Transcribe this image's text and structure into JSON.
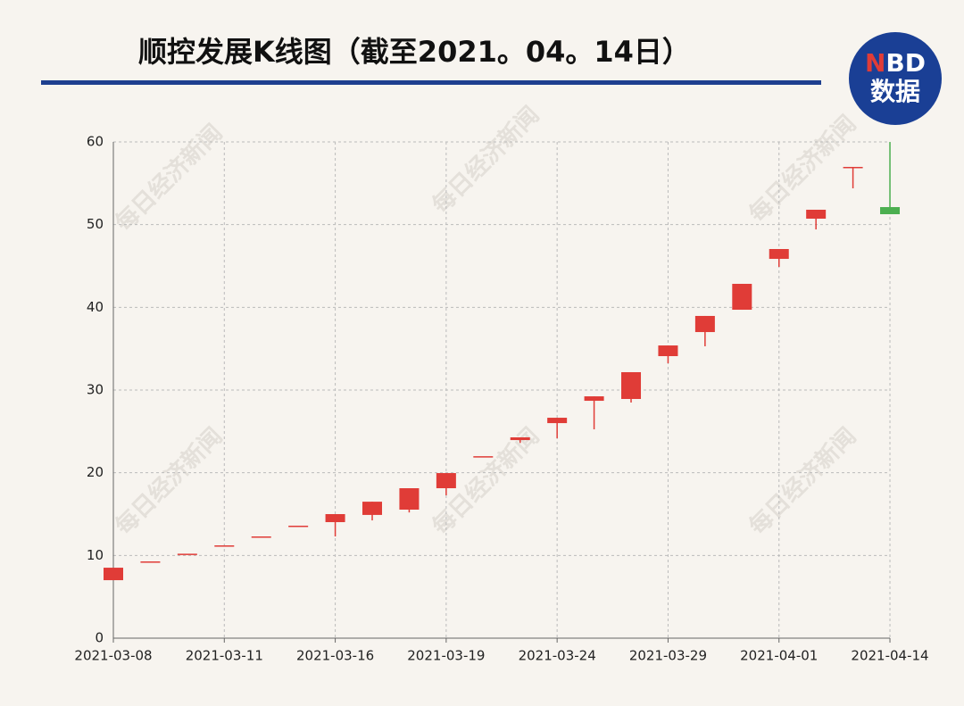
{
  "chart_data": {
    "type": "candlestick",
    "title": "顺控发展K线图（截至2021。04。14日）",
    "logo": {
      "mark_n": "N",
      "mark_bd": "BD",
      "text": "数据"
    },
    "watermark": "每日经济新闻",
    "categories": [
      "2021-03-08",
      null,
      null,
      "2021-03-11",
      null,
      null,
      "2021-03-16",
      null,
      null,
      "2021-03-19",
      null,
      null,
      "2021-03-24",
      null,
      null,
      "2021-03-29",
      null,
      null,
      "2021-04-01",
      null,
      null,
      "2021-04-14"
    ],
    "open": [
      7.01,
      9.28,
      10.21,
      11.22,
      12.3,
      13.6,
      14.03,
      14.9,
      15.54,
      18.13,
      22.0,
      23.95,
      26.0,
      28.7,
      28.92,
      34.1,
      37.01,
      39.71,
      45.86,
      50.72,
      56.98,
      52.12
    ],
    "close": [
      8.52,
      9.28,
      10.21,
      11.22,
      12.3,
      13.6,
      15.0,
      16.5,
      18.13,
      19.96,
      22.0,
      24.28,
      26.65,
      29.24,
      32.16,
      35.39,
      38.96,
      42.84,
      47.05,
      51.8,
      56.98,
      51.26
    ],
    "high": [
      8.52,
      9.28,
      10.21,
      11.22,
      12.3,
      13.6,
      15.0,
      16.5,
      18.13,
      19.96,
      22.0,
      24.28,
      26.65,
      29.24,
      32.16,
      35.39,
      38.96,
      42.84,
      47.05,
      51.8,
      56.98,
      59.99
    ],
    "low": [
      7.01,
      9.28,
      10.21,
      11.22,
      12.3,
      13.6,
      12.3,
      14.24,
      15.2,
      17.27,
      22.0,
      23.6,
      24.17,
      25.25,
      28.49,
      33.24,
      35.29,
      39.71,
      44.89,
      49.42,
      54.39,
      51.26
    ],
    "up_color": "#e03c37",
    "down_color": "#4caf50",
    "ylim": [
      0,
      60
    ],
    "yticks": [
      0,
      10,
      20,
      30,
      40,
      50,
      60
    ],
    "grid": true
  }
}
